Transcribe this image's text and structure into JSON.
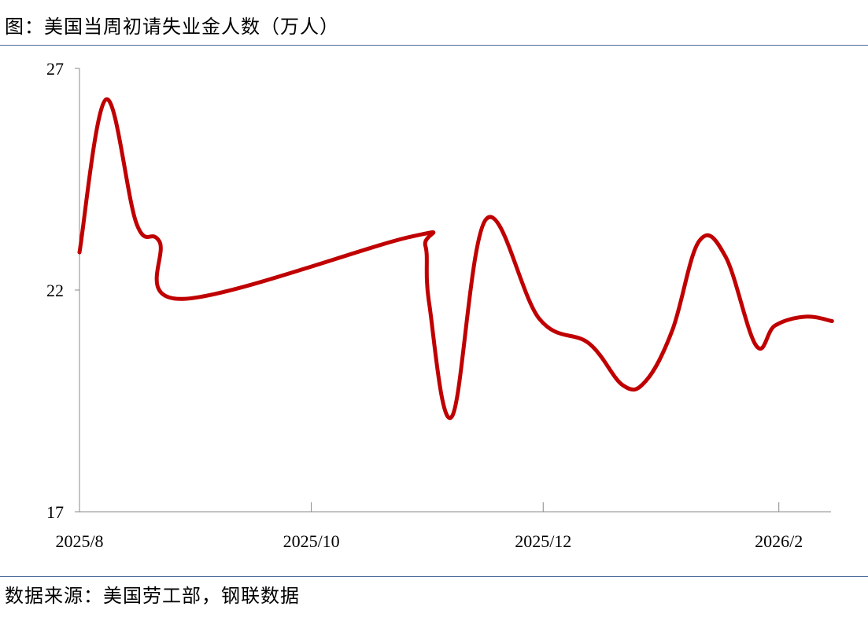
{
  "title": "图：美国当周初请失业金人数（万人）",
  "source": "数据来源：美国劳工部，钢联数据",
  "chart_data": {
    "type": "line",
    "title": "图：美国当周初请失业金人数（万人）",
    "xlabel": "",
    "ylabel": "",
    "ylim": [
      17,
      27
    ],
    "yticks": [
      "17",
      "22",
      "27"
    ],
    "xlim": [
      "2025-08-01",
      "2026-02-15"
    ],
    "xticks": [
      {
        "label": "2025/8",
        "date": "2025-08-01"
      },
      {
        "label": "2025/10",
        "date": "2025-10-01"
      },
      {
        "label": "2025/12",
        "date": "2025-12-01"
      },
      {
        "label": "2026/2",
        "date": "2026-02-01"
      }
    ],
    "grid": false,
    "legend": "none",
    "line_color": "#C00000",
    "series": [
      {
        "x": [
          "2025-08-01",
          "2025-08-08",
          "2025-08-16",
          "2025-08-22",
          "2025-08-28",
          "2025-10-27",
          "2025-10-31",
          "2025-11-01",
          "2025-11-07",
          "2025-11-16",
          "2025-11-30",
          "2025-12-13",
          "2025-12-22",
          "2025-12-28",
          "2026-01-04",
          "2026-01-11",
          "2026-01-18",
          "2026-01-26",
          "2026-01-31",
          "2026-02-08",
          "2026-02-15"
        ],
        "values": [
          22.85,
          26.3,
          23.5,
          23.1,
          21.8,
          23.2,
          23.0,
          21.7,
          19.15,
          23.6,
          21.35,
          20.8,
          19.85,
          19.95,
          21.1,
          23.1,
          22.75,
          20.75,
          21.2,
          21.4,
          21.3
        ]
      }
    ]
  }
}
